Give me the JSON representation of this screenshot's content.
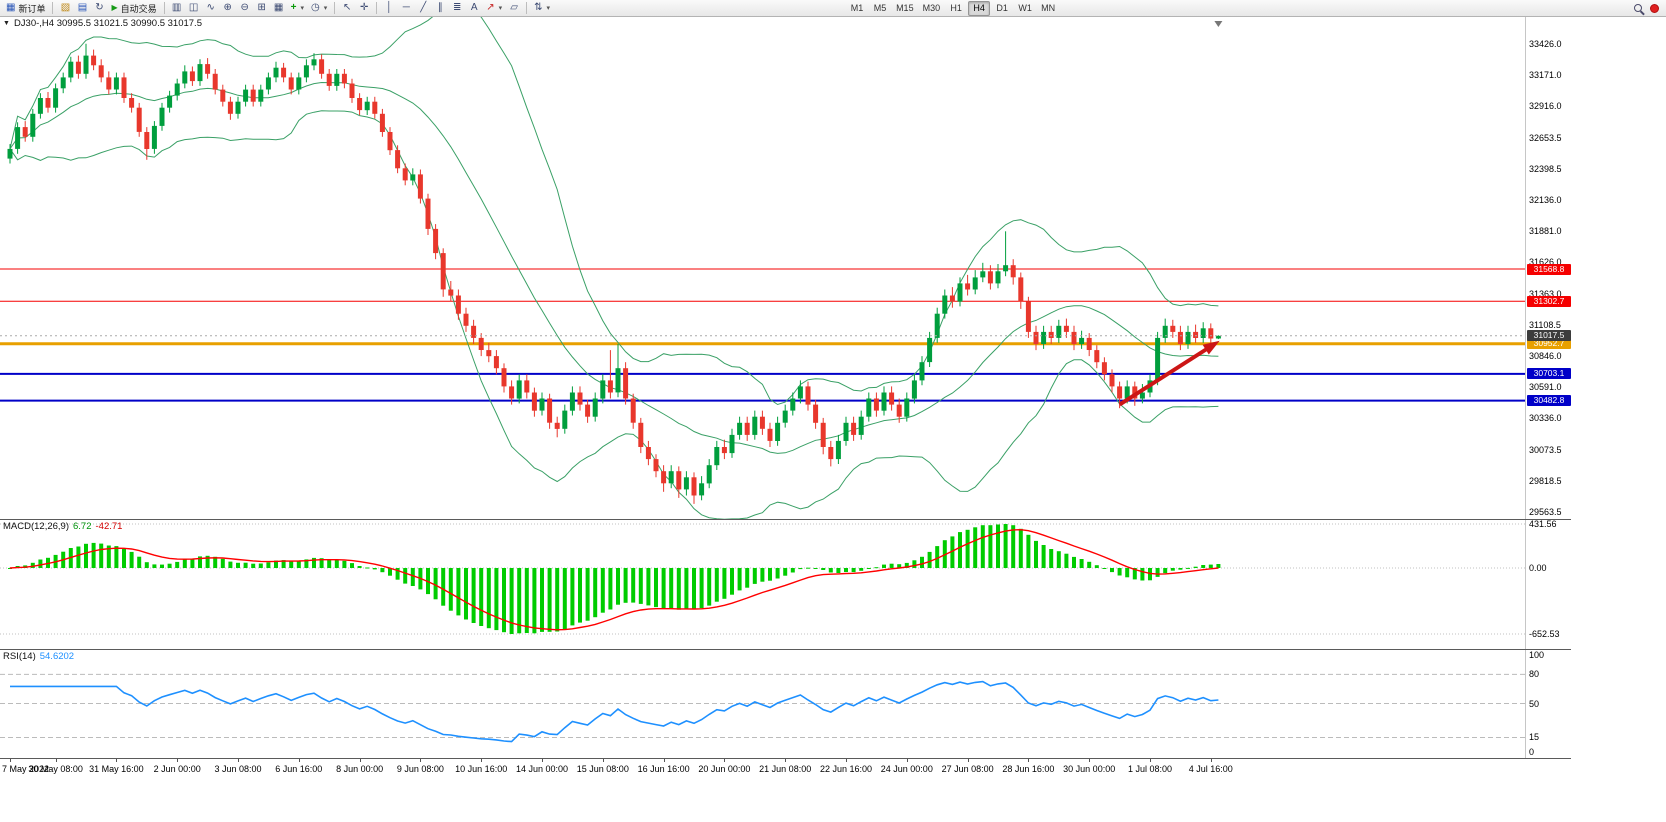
{
  "toolbar": {
    "new_order_label": "新订单",
    "auto_trading_label": "自动交易",
    "timeframes": {
      "items": [
        "M1",
        "M5",
        "M15",
        "M30",
        "H1",
        "H4",
        "D1",
        "W1",
        "MN"
      ],
      "active": "H4"
    }
  },
  "icons": {
    "new_order": "▦",
    "new_chart": "▧",
    "profiles": "▤",
    "refresh": "↻",
    "autoplay": "▶",
    "bar_chart": "▥",
    "candles": "◫",
    "line_chart": "∿",
    "zoom_in": "⊕",
    "zoom_out": "⊖",
    "tile": "⊞",
    "grid": "▦",
    "indicators": "+",
    "clock": "◷",
    "cursor": "↖",
    "crosshair": "✛",
    "vline": "│",
    "hline": "─",
    "trendline": "╱",
    "channel": "∥",
    "fibo": "≣",
    "text_tool": "A",
    "arrows": "↗",
    "shapes": "▱",
    "arrange": "⇅",
    "dropdown": "▾",
    "chart_menu": "▼"
  },
  "chart_data": {
    "type": "candlestick",
    "symbol": "DJ30-",
    "timeframe": "H4",
    "symbol_header": "DJ30-,H4  30995.5 31021.5 30990.5 31017.5",
    "ohlc": {
      "open": 30995.5,
      "high": 31021.5,
      "low": 30990.5,
      "close": 31017.5
    },
    "colors": {
      "up": "#009e3d",
      "down": "#e8372c",
      "bollinger": "#3aa066",
      "background": "#ffffff"
    },
    "price_axis": {
      "max": 33426.0,
      "min": 29563.5,
      "ticks": [
        "33426.0",
        "33171.0",
        "32916.0",
        "32653.5",
        "32398.5",
        "32136.0",
        "31881.0",
        "31626.0",
        "31363.0",
        "31108.5",
        "30846.0",
        "30591.0",
        "30336.0",
        "30073.5",
        "29818.5",
        "29563.5"
      ]
    },
    "bollinger": {
      "period": 20,
      "deviation": 2
    },
    "hlines": [
      {
        "price": 31568.8,
        "label": "31568.8",
        "color": "#f50000",
        "width": 1
      },
      {
        "price": 31302.7,
        "label": "31302.7",
        "color": "#f50000",
        "width": 1
      },
      {
        "price": 30952.7,
        "label": "30952.7",
        "color": "#e8a000",
        "width": 3
      },
      {
        "price": 30703.1,
        "label": "30703.1",
        "color": "#0000c8",
        "width": 2
      },
      {
        "price": 30482.8,
        "label": "30482.8",
        "color": "#0000c8",
        "width": 2
      }
    ],
    "current_price": {
      "value": 31017.5,
      "label": "31017.5"
    },
    "trend_arrow": {
      "from": {
        "bar": 146,
        "price": 30450
      },
      "to": {
        "bar": 158.5,
        "price": 30950
      },
      "color": "#cc1616"
    },
    "shift_marker_bar": 159,
    "candles": [
      [
        32480,
        32600,
        32440,
        32560
      ],
      [
        32560,
        32780,
        32520,
        32740
      ],
      [
        32740,
        32790,
        32620,
        32660
      ],
      [
        32660,
        32890,
        32620,
        32850
      ],
      [
        32850,
        33020,
        32810,
        32980
      ],
      [
        32980,
        33030,
        32860,
        32900
      ],
      [
        32900,
        33100,
        32860,
        33060
      ],
      [
        33060,
        33190,
        33020,
        33150
      ],
      [
        33150,
        33320,
        33110,
        33280
      ],
      [
        33280,
        33330,
        33140,
        33180
      ],
      [
        33180,
        33428,
        33140,
        33330
      ],
      [
        33330,
        33380,
        33210,
        33250
      ],
      [
        33250,
        33300,
        33110,
        33150
      ],
      [
        33150,
        33200,
        33010,
        33050
      ],
      [
        33050,
        33190,
        33010,
        33150
      ],
      [
        33150,
        33190,
        32940,
        32980
      ],
      [
        32980,
        33020,
        32860,
        32900
      ],
      [
        32900,
        32940,
        32660,
        32700
      ],
      [
        32700,
        32740,
        32470,
        32560
      ],
      [
        32560,
        32790,
        32520,
        32750
      ],
      [
        32750,
        32940,
        32710,
        32900
      ],
      [
        32900,
        33040,
        32860,
        33000
      ],
      [
        33000,
        33140,
        32960,
        33100
      ],
      [
        33100,
        33250,
        33060,
        33200
      ],
      [
        33200,
        33240,
        33080,
        33120
      ],
      [
        33120,
        33300,
        33080,
        33260
      ],
      [
        33260,
        33310,
        33140,
        33180
      ],
      [
        33180,
        33220,
        33010,
        33050
      ],
      [
        33050,
        33090,
        32910,
        32950
      ],
      [
        32950,
        32990,
        32800,
        32850
      ],
      [
        32850,
        32990,
        32810,
        32950
      ],
      [
        32950,
        33090,
        32910,
        33050
      ],
      [
        33050,
        33090,
        32910,
        32950
      ],
      [
        32950,
        33090,
        32910,
        33050
      ],
      [
        33050,
        33190,
        33010,
        33150
      ],
      [
        33150,
        33280,
        33110,
        33230
      ],
      [
        33230,
        33270,
        33110,
        33150
      ],
      [
        33150,
        33190,
        33010,
        33050
      ],
      [
        33050,
        33190,
        33010,
        33150
      ],
      [
        33150,
        33300,
        33110,
        33250
      ],
      [
        33250,
        33350,
        33210,
        33300
      ],
      [
        33300,
        33340,
        33140,
        33180
      ],
      [
        33180,
        33220,
        33040,
        33080
      ],
      [
        33080,
        33220,
        33040,
        33180
      ],
      [
        33180,
        33220,
        33060,
        33100
      ],
      [
        33100,
        33140,
        32940,
        32980
      ],
      [
        32980,
        33020,
        32840,
        32880
      ],
      [
        32880,
        32990,
        32840,
        32950
      ],
      [
        32950,
        32990,
        32810,
        32850
      ],
      [
        32850,
        32890,
        32660,
        32700
      ],
      [
        32700,
        32740,
        32510,
        32550
      ],
      [
        32550,
        32590,
        32360,
        32400
      ],
      [
        32400,
        32440,
        32260,
        32300
      ],
      [
        32300,
        32400,
        32260,
        32350
      ],
      [
        32350,
        32390,
        32110,
        32150
      ],
      [
        32150,
        32190,
        31850,
        31900
      ],
      [
        31900,
        31940,
        31650,
        31700
      ],
      [
        31700,
        31740,
        31340,
        31400
      ],
      [
        31400,
        31470,
        31300,
        31350
      ],
      [
        31350,
        31400,
        31150,
        31200
      ],
      [
        31200,
        31250,
        31050,
        31100
      ],
      [
        31100,
        31150,
        30950,
        31000
      ],
      [
        31000,
        31040,
        30850,
        30900
      ],
      [
        30900,
        30960,
        30800,
        30850
      ],
      [
        30850,
        30900,
        30700,
        30750
      ],
      [
        30750,
        30790,
        30550,
        30600
      ],
      [
        30600,
        30650,
        30450,
        30500
      ],
      [
        30500,
        30700,
        30460,
        30650
      ],
      [
        30650,
        30700,
        30500,
        30550
      ],
      [
        30550,
        30590,
        30350,
        30400
      ],
      [
        30400,
        30550,
        30360,
        30500
      ],
      [
        30500,
        30540,
        30250,
        30300
      ],
      [
        30300,
        30350,
        30180,
        30250
      ],
      [
        30250,
        30450,
        30210,
        30400
      ],
      [
        30400,
        30600,
        30360,
        30550
      ],
      [
        30550,
        30600,
        30400,
        30450
      ],
      [
        30450,
        30490,
        30300,
        30350
      ],
      [
        30350,
        30550,
        30310,
        30500
      ],
      [
        30500,
        30700,
        30460,
        30650
      ],
      [
        30650,
        30900,
        30500,
        30550
      ],
      [
        30550,
        30950,
        30510,
        30750
      ],
      [
        30750,
        30800,
        30450,
        30500
      ],
      [
        30500,
        30540,
        30250,
        30300
      ],
      [
        30300,
        30340,
        30050,
        30100
      ],
      [
        30100,
        30150,
        29950,
        30000
      ],
      [
        30000,
        30040,
        29850,
        29900
      ],
      [
        29900,
        29950,
        29730,
        29800
      ],
      [
        29800,
        29950,
        29760,
        29900
      ],
      [
        29900,
        29940,
        29680,
        29750
      ],
      [
        29750,
        29900,
        29700,
        29850
      ],
      [
        29850,
        29890,
        29630,
        29700
      ],
      [
        29700,
        29860,
        29660,
        29800
      ],
      [
        29800,
        30000,
        29760,
        29950
      ],
      [
        29950,
        30150,
        29910,
        30100
      ],
      [
        30100,
        30160,
        30000,
        30050
      ],
      [
        30050,
        30250,
        30010,
        30200
      ],
      [
        30200,
        30350,
        30160,
        30300
      ],
      [
        30300,
        30350,
        30150,
        30200
      ],
      [
        30200,
        30400,
        30160,
        30350
      ],
      [
        30350,
        30400,
        30200,
        30250
      ],
      [
        30250,
        30300,
        30100,
        30150
      ],
      [
        30150,
        30350,
        30110,
        30300
      ],
      [
        30300,
        30450,
        30260,
        30400
      ],
      [
        30400,
        30550,
        30360,
        30500
      ],
      [
        30500,
        30650,
        30460,
        30600
      ],
      [
        30600,
        30640,
        30400,
        30450
      ],
      [
        30450,
        30490,
        30250,
        30300
      ],
      [
        30300,
        30340,
        30040,
        30100
      ],
      [
        30100,
        30150,
        29940,
        30000
      ],
      [
        30000,
        30200,
        29960,
        30150
      ],
      [
        30150,
        30350,
        30110,
        30300
      ],
      [
        30300,
        30350,
        30150,
        30200
      ],
      [
        30200,
        30400,
        30160,
        30350
      ],
      [
        30350,
        30550,
        30310,
        30500
      ],
      [
        30500,
        30550,
        30350,
        30400
      ],
      [
        30400,
        30600,
        30360,
        30550
      ],
      [
        30550,
        30600,
        30400,
        30450
      ],
      [
        30450,
        30500,
        30300,
        30350
      ],
      [
        30350,
        30550,
        30310,
        30500
      ],
      [
        30500,
        30700,
        30460,
        30650
      ],
      [
        30650,
        30850,
        30610,
        30800
      ],
      [
        30800,
        31050,
        30760,
        31000
      ],
      [
        31000,
        31250,
        30960,
        31200
      ],
      [
        31200,
        31400,
        31160,
        31350
      ],
      [
        31350,
        31420,
        31250,
        31300
      ],
      [
        31300,
        31500,
        31260,
        31450
      ],
      [
        31450,
        31520,
        31350,
        31400
      ],
      [
        31400,
        31560,
        31360,
        31500
      ],
      [
        31500,
        31620,
        31460,
        31550
      ],
      [
        31550,
        31600,
        31400,
        31450
      ],
      [
        31450,
        31610,
        31410,
        31550
      ],
      [
        31550,
        31880,
        31510,
        31600
      ],
      [
        31600,
        31650,
        31440,
        31500
      ],
      [
        31500,
        31540,
        31240,
        31300
      ],
      [
        31300,
        31340,
        31000,
        31050
      ],
      [
        31050,
        31100,
        30900,
        30950
      ],
      [
        30950,
        31100,
        30910,
        31050
      ],
      [
        31050,
        31100,
        30950,
        31000
      ],
      [
        31000,
        31150,
        30960,
        31100
      ],
      [
        31100,
        31160,
        31000,
        31050
      ],
      [
        31050,
        31100,
        30900,
        30950
      ],
      [
        30950,
        31060,
        30910,
        31000
      ],
      [
        31000,
        31040,
        30850,
        30900
      ],
      [
        30900,
        30940,
        30750,
        30800
      ],
      [
        30800,
        30840,
        30650,
        30700
      ],
      [
        30700,
        30740,
        30550,
        30600
      ],
      [
        30600,
        30640,
        30420,
        30500
      ],
      [
        30500,
        30650,
        30460,
        30600
      ],
      [
        30600,
        30640,
        30440,
        30500
      ],
      [
        30500,
        30620,
        30460,
        30550
      ],
      [
        30550,
        30700,
        30510,
        30650
      ],
      [
        30650,
        31050,
        30610,
        31000
      ],
      [
        31000,
        31160,
        30960,
        31100
      ],
      [
        31100,
        31150,
        31000,
        31050
      ],
      [
        31050,
        31100,
        30900,
        30950
      ],
      [
        30950,
        31100,
        30910,
        31050
      ],
      [
        31050,
        31110,
        30960,
        31000
      ],
      [
        31000,
        31130,
        30960,
        31080
      ],
      [
        31080,
        31120,
        30940,
        30995.5
      ],
      [
        30995.5,
        31021.5,
        30990.5,
        31017.5
      ]
    ],
    "macd": {
      "label": "MACD(12,26,9)",
      "value_main": "6.72",
      "value_signal": "-42.71",
      "fast": 12,
      "slow": 26,
      "signal": 9,
      "hist_color": "#00cc00",
      "signal_color": "#ff0000",
      "axis_ticks": [
        {
          "value": 431.56,
          "label": "431.56"
        },
        {
          "value": 0,
          "label": "0.00"
        },
        {
          "value": -652.53,
          "label": "-652.53"
        }
      ]
    },
    "rsi": {
      "label": "RSI(14)",
      "value": "54.6202",
      "period": 14,
      "color": "#1e90ff",
      "levels": [
        80,
        50,
        15
      ],
      "axis_ticks": [
        {
          "value": 100,
          "label": "100"
        },
        {
          "value": 80,
          "label": "80"
        },
        {
          "value": 50,
          "label": "50"
        },
        {
          "value": 15,
          "label": "15"
        },
        {
          "value": 0,
          "label": "0"
        }
      ]
    },
    "time_labels": [
      {
        "bar": 0,
        "text": "7 May 2022"
      },
      {
        "bar": 6,
        "text": "30 May 08:00"
      },
      {
        "bar": 14,
        "text": "31 May 16:00"
      },
      {
        "bar": 22,
        "text": "2 Jun 00:00"
      },
      {
        "bar": 30,
        "text": "3 Jun 08:00"
      },
      {
        "bar": 38,
        "text": "6 Jun 16:00"
      },
      {
        "bar": 46,
        "text": "8 Jun 00:00"
      },
      {
        "bar": 54,
        "text": "9 Jun 08:00"
      },
      {
        "bar": 62,
        "text": "10 Jun 16:00"
      },
      {
        "bar": 70,
        "text": "14 Jun 00:00"
      },
      {
        "bar": 78,
        "text": "15 Jun 08:00"
      },
      {
        "bar": 86,
        "text": "16 Jun 16:00"
      },
      {
        "bar": 94,
        "text": "20 Jun 00:00"
      },
      {
        "bar": 102,
        "text": "21 Jun 08:00"
      },
      {
        "bar": 110,
        "text": "22 Jun 16:00"
      },
      {
        "bar": 118,
        "text": "24 Jun 00:00"
      },
      {
        "bar": 126,
        "text": "27 Jun 08:00"
      },
      {
        "bar": 134,
        "text": "28 Jun 16:00"
      },
      {
        "bar": 142,
        "text": "30 Jun 00:00"
      },
      {
        "bar": 150,
        "text": "1 Jul 08:00"
      },
      {
        "bar": 158,
        "text": "4 Jul 16:00"
      }
    ]
  }
}
